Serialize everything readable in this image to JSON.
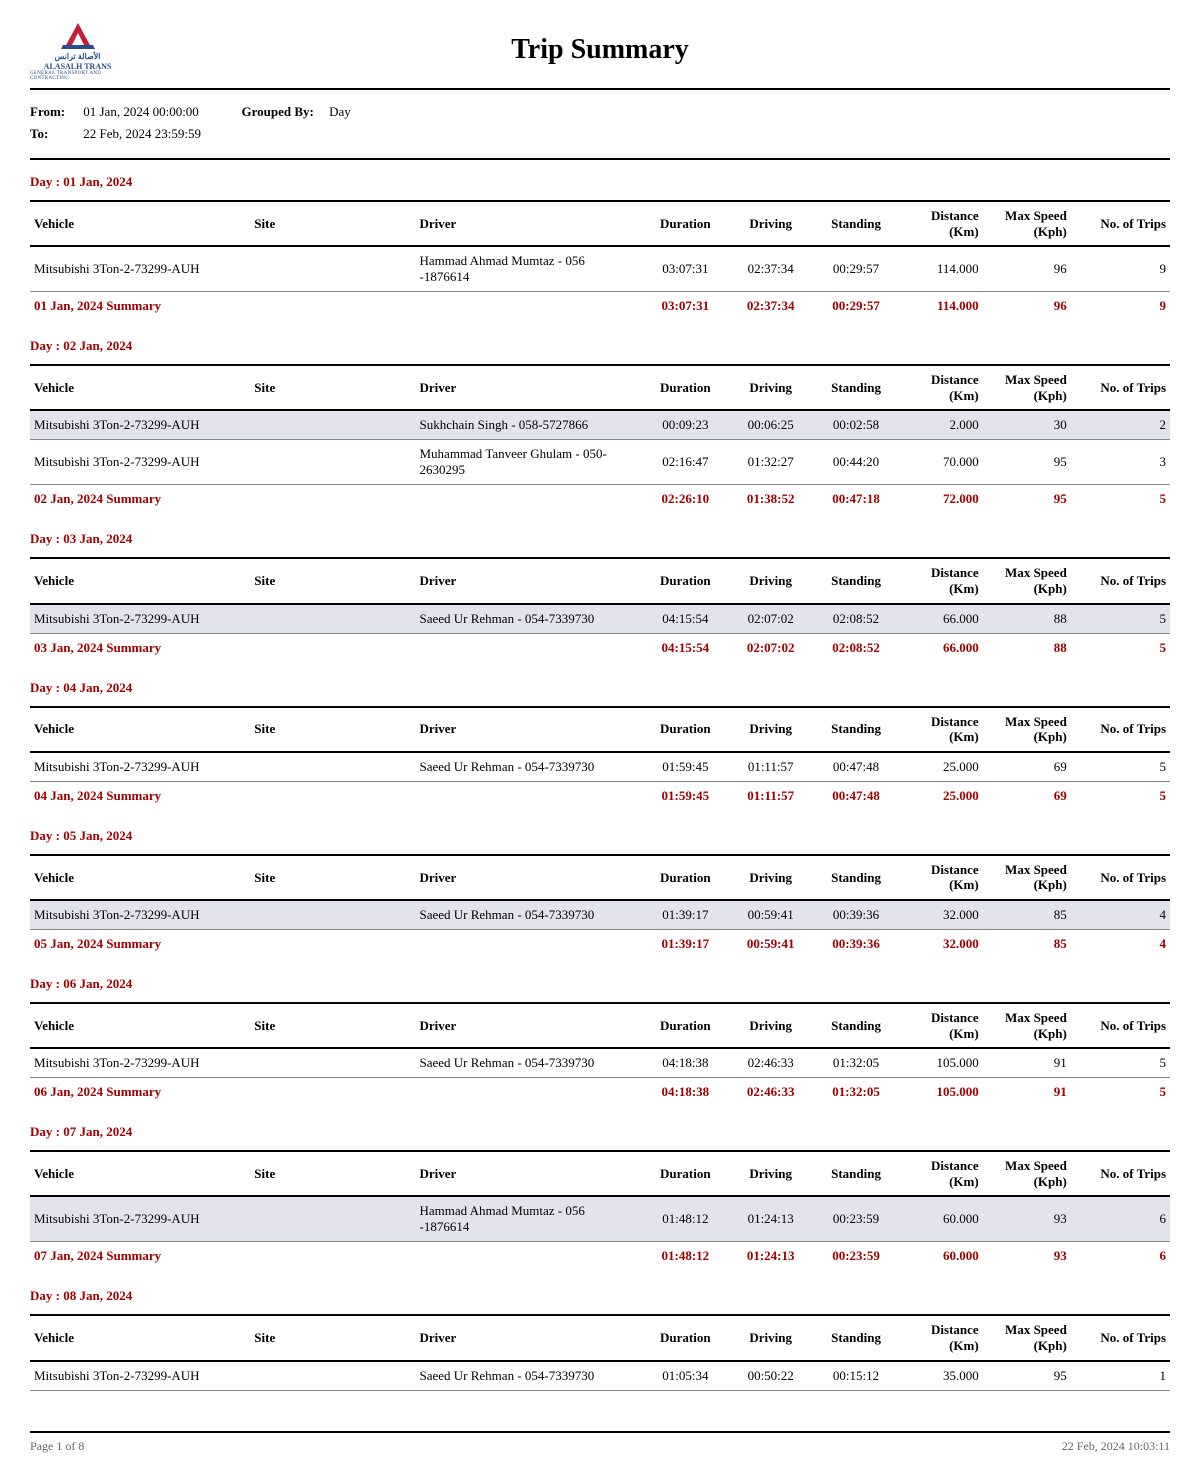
{
  "report": {
    "title": "Trip Summary",
    "logo": {
      "arabic": "الأصالة ترانس",
      "latin": "ALASALH TRANS",
      "sub": "GENERAL TRANSPORT AND CONTRACTING"
    },
    "from_label": "From:",
    "to_label": "To:",
    "from_value": "01 Jan, 2024 00:00:00",
    "to_value": "22 Feb, 2024 23:59:59",
    "grouped_by_label": "Grouped By:",
    "grouped_by_value": "Day"
  },
  "columns": {
    "vehicle": "Vehicle",
    "site": "Site",
    "driver": "Driver",
    "duration": "Duration",
    "driving": "Driving",
    "standing": "Standing",
    "distance": "Distance (Km)",
    "max_speed": "Max Speed (Kph)",
    "trips": "No. of Trips"
  },
  "days": [
    {
      "header": "Day : 01 Jan, 2024",
      "rows": [
        {
          "vehicle": "Mitsubishi 3Ton-2-73299-AUH",
          "site": "",
          "driver": "Hammad Ahmad Mumtaz  -  056 -1876614",
          "duration": "03:07:31",
          "driving": "02:37:34",
          "standing": "00:29:57",
          "distance": "114.000",
          "speed": "96",
          "trips": "9",
          "alt": false
        }
      ],
      "summary": {
        "label": "01 Jan, 2024 Summary",
        "duration": "03:07:31",
        "driving": "02:37:34",
        "standing": "00:29:57",
        "distance": "114.000",
        "speed": "96",
        "trips": "9"
      }
    },
    {
      "header": "Day : 02 Jan, 2024",
      "rows": [
        {
          "vehicle": "Mitsubishi 3Ton-2-73299-AUH",
          "site": "",
          "driver": "Sukhchain Singh - 058-5727866",
          "duration": "00:09:23",
          "driving": "00:06:25",
          "standing": "00:02:58",
          "distance": "2.000",
          "speed": "30",
          "trips": "2",
          "alt": true
        },
        {
          "vehicle": "Mitsubishi 3Ton-2-73299-AUH",
          "site": "",
          "driver": "Muhammad Tanveer Ghulam - 050-2630295",
          "duration": "02:16:47",
          "driving": "01:32:27",
          "standing": "00:44:20",
          "distance": "70.000",
          "speed": "95",
          "trips": "3",
          "alt": false
        }
      ],
      "summary": {
        "label": "02 Jan, 2024 Summary",
        "duration": "02:26:10",
        "driving": "01:38:52",
        "standing": "00:47:18",
        "distance": "72.000",
        "speed": "95",
        "trips": "5"
      }
    },
    {
      "header": "Day : 03 Jan, 2024",
      "rows": [
        {
          "vehicle": "Mitsubishi 3Ton-2-73299-AUH",
          "site": "",
          "driver": "Saeed Ur Rehman - 054-7339730",
          "duration": "04:15:54",
          "driving": "02:07:02",
          "standing": "02:08:52",
          "distance": "66.000",
          "speed": "88",
          "trips": "5",
          "alt": true
        }
      ],
      "summary": {
        "label": "03 Jan, 2024 Summary",
        "duration": "04:15:54",
        "driving": "02:07:02",
        "standing": "02:08:52",
        "distance": "66.000",
        "speed": "88",
        "trips": "5"
      }
    },
    {
      "header": "Day : 04 Jan, 2024",
      "rows": [
        {
          "vehicle": "Mitsubishi 3Ton-2-73299-AUH",
          "site": "",
          "driver": "Saeed Ur Rehman - 054-7339730",
          "duration": "01:59:45",
          "driving": "01:11:57",
          "standing": "00:47:48",
          "distance": "25.000",
          "speed": "69",
          "trips": "5",
          "alt": false
        }
      ],
      "summary": {
        "label": "04 Jan, 2024 Summary",
        "duration": "01:59:45",
        "driving": "01:11:57",
        "standing": "00:47:48",
        "distance": "25.000",
        "speed": "69",
        "trips": "5"
      }
    },
    {
      "header": "Day : 05 Jan, 2024",
      "rows": [
        {
          "vehicle": "Mitsubishi 3Ton-2-73299-AUH",
          "site": "",
          "driver": "Saeed Ur Rehman - 054-7339730",
          "duration": "01:39:17",
          "driving": "00:59:41",
          "standing": "00:39:36",
          "distance": "32.000",
          "speed": "85",
          "trips": "4",
          "alt": true
        }
      ],
      "summary": {
        "label": "05 Jan, 2024 Summary",
        "duration": "01:39:17",
        "driving": "00:59:41",
        "standing": "00:39:36",
        "distance": "32.000",
        "speed": "85",
        "trips": "4"
      }
    },
    {
      "header": "Day : 06 Jan, 2024",
      "rows": [
        {
          "vehicle": "Mitsubishi 3Ton-2-73299-AUH",
          "site": "",
          "driver": "Saeed Ur Rehman - 054-7339730",
          "duration": "04:18:38",
          "driving": "02:46:33",
          "standing": "01:32:05",
          "distance": "105.000",
          "speed": "91",
          "trips": "5",
          "alt": false
        }
      ],
      "summary": {
        "label": "06 Jan, 2024 Summary",
        "duration": "04:18:38",
        "driving": "02:46:33",
        "standing": "01:32:05",
        "distance": "105.000",
        "speed": "91",
        "trips": "5"
      }
    },
    {
      "header": "Day : 07 Jan, 2024",
      "rows": [
        {
          "vehicle": "Mitsubishi 3Ton-2-73299-AUH",
          "site": "",
          "driver": "Hammad Ahmad Mumtaz  -  056 -1876614",
          "duration": "01:48:12",
          "driving": "01:24:13",
          "standing": "00:23:59",
          "distance": "60.000",
          "speed": "93",
          "trips": "6",
          "alt": true
        }
      ],
      "summary": {
        "label": "07 Jan, 2024 Summary",
        "duration": "01:48:12",
        "driving": "01:24:13",
        "standing": "00:23:59",
        "distance": "60.000",
        "speed": "93",
        "trips": "6"
      }
    },
    {
      "header": "Day : 08 Jan, 2024",
      "rows": [
        {
          "vehicle": "Mitsubishi 3Ton-2-73299-AUH",
          "site": "",
          "driver": "Saeed Ur Rehman - 054-7339730",
          "duration": "01:05:34",
          "driving": "00:50:22",
          "standing": "00:15:12",
          "distance": "35.000",
          "speed": "95",
          "trips": "1",
          "alt": false
        }
      ],
      "summary": null
    }
  ],
  "footer": {
    "page": "Page 1 of 8",
    "timestamp": "22 Feb, 2024 10:03:11"
  },
  "colors": {
    "accent": "#a00000",
    "alt_row": "#e3e3ed",
    "header_border": "#000000",
    "logo_blue": "#2a4d8f",
    "logo_red": "#c41e3a"
  }
}
